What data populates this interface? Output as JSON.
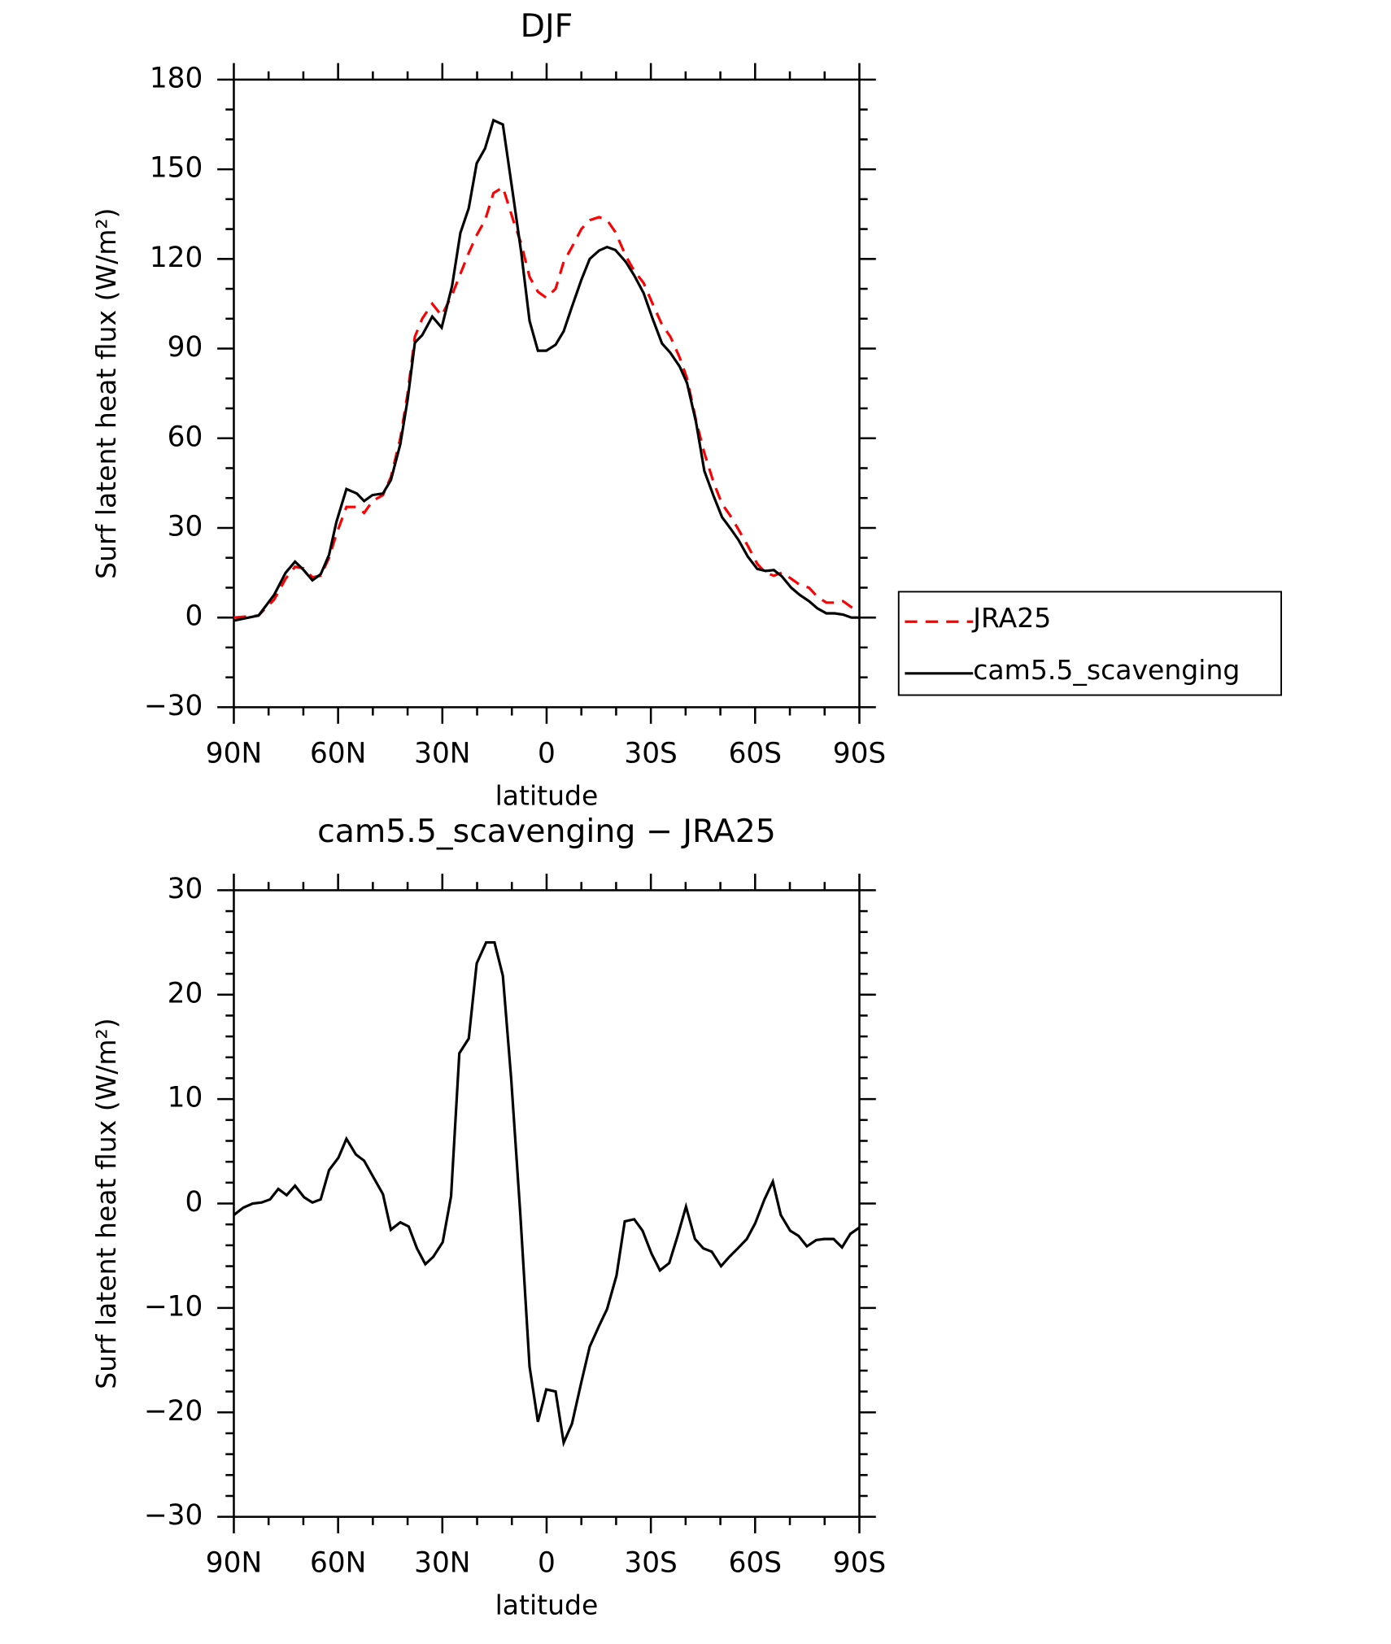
{
  "chart_data": [
    {
      "type": "line",
      "title": "DJF",
      "xlabel": "latitude",
      "ylabel": "Surf latent heat flux (W/m²)",
      "x": [
        90,
        82.9,
        78.4,
        75.1,
        72.4,
        70,
        67.4,
        65,
        62.6,
        60.5,
        57.6,
        54.6,
        52.5,
        50.1,
        47.1,
        44.8,
        42.1,
        40,
        37.9,
        35.8,
        32.9,
        30.2,
        27.2,
        24.8,
        22.4,
        20.1,
        17.7,
        15.3,
        12.6,
        9.6,
        7.3,
        4.9,
        2.5,
        0.1,
        -2.6,
        -4.9,
        -7.3,
        -10,
        -12.4,
        -15.1,
        -17.4,
        -19.8,
        -22.8,
        -25.2,
        -27.9,
        -30.5,
        -33.2,
        -35.6,
        -38.3,
        -40.4,
        -43,
        -45.4,
        -48.1,
        -50.5,
        -52.9,
        -55.2,
        -57.9,
        -60.6,
        -63,
        -65.4,
        -67.7,
        -70.4,
        -72.8,
        -75.5,
        -77.9,
        -80.5,
        -82.9,
        -85.3,
        -87.7,
        -90
      ],
      "series": [
        {
          "name": "JRA25",
          "color": "#ff0000",
          "line_style": "dashed",
          "values": [
            0,
            0.7,
            6,
            13,
            17,
            16.5,
            13.5,
            14,
            20,
            28,
            37,
            37,
            35,
            39,
            41,
            47,
            60,
            75,
            94,
            100,
            105,
            101,
            108,
            115,
            122,
            128,
            133,
            142,
            144,
            133,
            125,
            114,
            109,
            107,
            110,
            119,
            124,
            130,
            133,
            134,
            133,
            129,
            121,
            116,
            112,
            105,
            98,
            94,
            87,
            80,
            66,
            55,
            45,
            38,
            34,
            29.5,
            24,
            18,
            15,
            14,
            15,
            13,
            11,
            10,
            7,
            5,
            5,
            5.5,
            3.5,
            2
          ]
        },
        {
          "name": "cam5.5_scavenging",
          "color": "#000000",
          "line_style": "solid",
          "values": [
            -1,
            0.7,
            7.6,
            15,
            18.7,
            16,
            12.5,
            14.5,
            21,
            32,
            43,
            41.5,
            39,
            41,
            41.5,
            46,
            58,
            73,
            92,
            94.5,
            100.7,
            97,
            111,
            128.7,
            137,
            152,
            157,
            166.4,
            165,
            141,
            122,
            99.3,
            89.3,
            89.3,
            91.3,
            95.8,
            104,
            113,
            120,
            122.8,
            124,
            123,
            119,
            114.5,
            108.6,
            100,
            91.7,
            88.6,
            84,
            78.5,
            65.4,
            49,
            40.5,
            33.6,
            29.8,
            26,
            20.4,
            16.3,
            15.6,
            15.9,
            13.8,
            10,
            7.6,
            5.5,
            3.1,
            1.4,
            1.4,
            1,
            0,
            0
          ]
        }
      ],
      "xlim": [
        90,
        -90
      ],
      "xticks": [
        {
          "value": 90,
          "label": "90N"
        },
        {
          "value": 60,
          "label": "60N"
        },
        {
          "value": 30,
          "label": "30N"
        },
        0,
        {
          "value": -30,
          "label": "30S"
        },
        {
          "value": -60,
          "label": "60S"
        },
        {
          "value": -90,
          "label": "90S"
        }
      ],
      "xminorticks": [
        80,
        70,
        50,
        40,
        20,
        10,
        -10,
        -20,
        -40,
        -50,
        -70,
        -80
      ],
      "ylim": [
        -30,
        180
      ],
      "yticks": [
        {
          "value": -30,
          "label": "−30"
        },
        0,
        30,
        60,
        90,
        120,
        150,
        180
      ],
      "yminorticks": [
        -20,
        -10,
        10,
        20,
        40,
        50,
        70,
        80,
        100,
        110,
        130,
        140,
        160,
        170
      ],
      "legend": "right"
    },
    {
      "type": "line",
      "title": "cam5.5_scavenging − JRA25",
      "xlabel": "latitude",
      "ylabel": "Surf latent heat flux (W/m²)",
      "x": [
        90,
        87.3,
        84.6,
        82,
        79.6,
        77.2,
        74.8,
        72.4,
        69.8,
        67.4,
        65,
        62.6,
        59.9,
        57.6,
        54.9,
        52.5,
        49.8,
        47.1,
        44.8,
        42.1,
        39.7,
        37.3,
        34.9,
        32.6,
        29.9,
        27.5,
        25.1,
        22.4,
        20.1,
        17.4,
        15,
        12.6,
        10.2,
        7.6,
        4.9,
        2.5,
        0.1,
        -2.6,
        -4.9,
        -7.3,
        -10,
        -12.4,
        -15.1,
        -17.4,
        -20.1,
        -22.5,
        -25.2,
        -27.6,
        -30.2,
        -32.6,
        -35.3,
        -37.7,
        -40.1,
        -42.7,
        -45.1,
        -47.5,
        -50.2,
        -52.6,
        -55,
        -57.6,
        -60,
        -62.7,
        -65.1,
        -67.4,
        -70.1,
        -72.5,
        -74.9,
        -77.6,
        -79.9,
        -82.6,
        -85,
        -87.4,
        -90
      ],
      "values": [
        -1.1,
        -0.4,
        0,
        0.1,
        0.4,
        1.4,
        0.8,
        1.7,
        0.6,
        0.1,
        0.4,
        3.2,
        4.4,
        6.2,
        4.7,
        4.1,
        2.5,
        0.9,
        -2.5,
        -1.8,
        -2.2,
        -4.3,
        -5.8,
        -5.1,
        -3.7,
        0.7,
        14.4,
        15.8,
        23,
        25,
        25,
        21.8,
        12,
        -0.9,
        -15.6,
        -20.9,
        -17.8,
        -18,
        -22.9,
        -21.1,
        -17.1,
        -13.7,
        -11.7,
        -10.1,
        -6.9,
        -1.7,
        -1.5,
        -2.6,
        -4.8,
        -6.4,
        -5.7,
        -3.1,
        -0.3,
        -3.4,
        -4.3,
        -4.6,
        -6,
        -5.1,
        -4.3,
        -3.4,
        -1.9,
        0.4,
        2.1,
        -1.1,
        -2.6,
        -3.1,
        -4.1,
        -3.5,
        -3.4,
        -3.4,
        -4.2,
        -2.9,
        -2.3
      ],
      "color": "#000000",
      "xlim": [
        90,
        -90
      ],
      "xticks": [
        {
          "value": 90,
          "label": "90N"
        },
        {
          "value": 60,
          "label": "60N"
        },
        {
          "value": 30,
          "label": "30N"
        },
        0,
        {
          "value": -30,
          "label": "30S"
        },
        {
          "value": -60,
          "label": "60S"
        },
        {
          "value": -90,
          "label": "90S"
        }
      ],
      "xminorticks": [
        80,
        70,
        50,
        40,
        20,
        10,
        -10,
        -20,
        -40,
        -50,
        -70,
        -80
      ],
      "ylim": [
        -30,
        30
      ],
      "yticks": [
        {
          "value": -30,
          "label": "−30"
        },
        {
          "value": -20,
          "label": "−20"
        },
        {
          "value": -10,
          "label": "−10"
        },
        0,
        10,
        20,
        30
      ],
      "yminorticks": [
        -28,
        -26,
        -24,
        -22,
        -18,
        -16,
        -14,
        -12,
        -8,
        -6,
        -4,
        -2,
        2,
        4,
        6,
        8,
        12,
        14,
        16,
        18,
        22,
        24,
        26,
        28
      ]
    }
  ]
}
